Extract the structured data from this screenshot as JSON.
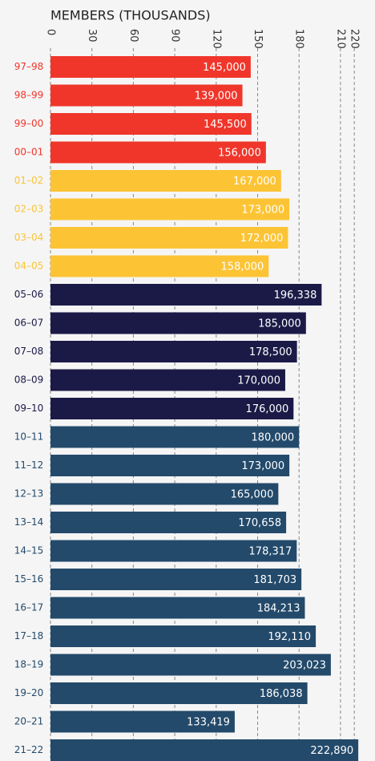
{
  "chart_data": {
    "type": "hbar",
    "title": "MEMBERS (THOUSANDS)",
    "categories": [
      "97–98",
      "98–99",
      "99–00",
      "00–01",
      "01–02",
      "02–03",
      "03–04",
      "04–05",
      "05–06",
      "06–07",
      "07–08",
      "08–09",
      "09–10",
      "10–11",
      "11–12",
      "12–13",
      "13–14",
      "14–15",
      "15–16",
      "16–17",
      "17–18",
      "18–19",
      "19–20",
      "20–21",
      "21–22"
    ],
    "values": [
      145,
      139,
      145.5,
      156,
      167,
      173,
      172,
      158,
      196.338,
      185,
      178.5,
      170,
      176,
      180,
      173,
      165,
      170.658,
      178.317,
      181.703,
      184.213,
      192.11,
      203.023,
      186.038,
      133.419,
      222.89
    ],
    "value_labels": [
      "145,000",
      "139,000",
      "145,500",
      "156,000",
      "167,000",
      "173,000",
      "172,000",
      "158,000",
      "196,338",
      "185,000",
      "178,500",
      "170,000",
      "176,000",
      "180,000",
      "173,000",
      "165,000",
      "170,658",
      "178,317",
      "181,703",
      "184,213",
      "192,110",
      "203,023",
      "186,038",
      "133,419",
      "222,890"
    ],
    "colors": [
      "#f0362b",
      "#f0362b",
      "#f0362b",
      "#f0362b",
      "#fcc435",
      "#fcc435",
      "#fcc435",
      "#fcc435",
      "#1b1a47",
      "#1b1a47",
      "#1b1a47",
      "#1b1a47",
      "#1b1a47",
      "#234a6b",
      "#234a6b",
      "#234a6b",
      "#234a6b",
      "#234a6b",
      "#234a6b",
      "#234a6b",
      "#234a6b",
      "#234a6b",
      "#234a6b",
      "#234a6b",
      "#234a6b"
    ],
    "xlim": [
      0,
      235
    ],
    "xticks": [
      0,
      30,
      60,
      90,
      120,
      150,
      180,
      210,
      220
    ],
    "grid": true
  }
}
